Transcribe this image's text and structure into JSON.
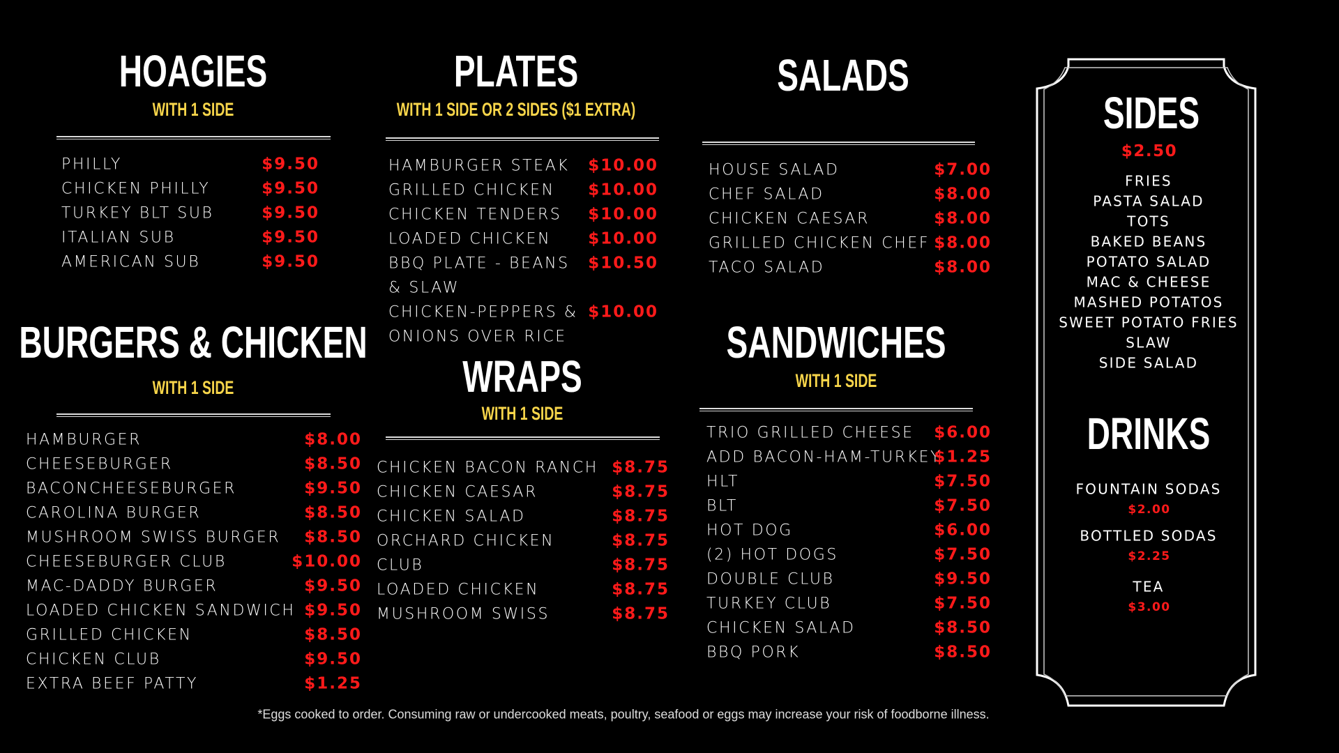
{
  "colors": {
    "background": "#000000",
    "price": "#ff1a1a",
    "subtitle": "#f7d54a",
    "text": "#ffffff"
  },
  "hoagies": {
    "title": "HOAGIES",
    "subtitle": "WITH 1 SIDE",
    "items": [
      {
        "name": "PHILLY",
        "price": "$9.50"
      },
      {
        "name": "CHICKEN PHILLY",
        "price": "$9.50"
      },
      {
        "name": "TURKEY BLT SUB",
        "price": "$9.50"
      },
      {
        "name": "ITALIAN SUB",
        "price": "$9.50"
      },
      {
        "name": "AMERICAN SUB",
        "price": "$9.50"
      }
    ]
  },
  "burgers": {
    "title": "BURGERS & CHICKEN",
    "subtitle": "WITH 1 SIDE",
    "items": [
      {
        "name": "HAMBURGER",
        "price": "$8.00"
      },
      {
        "name": "CHEESEBURGER",
        "price": "$8.50"
      },
      {
        "name": "BACONCHEESEBURGER",
        "price": "$9.50"
      },
      {
        "name": "CAROLINA BURGER",
        "price": "$8.50"
      },
      {
        "name": "MUSHROOM SWISS BURGER",
        "price": "$8.50"
      },
      {
        "name": "CHEESEBURGER CLUB",
        "price": "$10.00"
      },
      {
        "name": "MAC-DADDY BURGER",
        "price": "$9.50"
      },
      {
        "name": "LOADED CHICKEN SANDWICH",
        "price": "$9.50"
      },
      {
        "name": "GRILLED CHICKEN",
        "price": "$8.50"
      },
      {
        "name": "CHICKEN CLUB",
        "price": "$9.50"
      },
      {
        "name": "EXTRA BEEF PATTY",
        "price": "$1.25"
      }
    ]
  },
  "plates": {
    "title": "PLATES",
    "subtitle": "WITH 1 SIDE OR 2 SIDES ($1 EXTRA)",
    "items": [
      {
        "name": "HAMBURGER STEAK",
        "price": "$10.00"
      },
      {
        "name": "GRILLED CHICKEN",
        "price": "$10.00"
      },
      {
        "name": "CHICKEN TENDERS",
        "price": "$10.00"
      },
      {
        "name": "LOADED CHICKEN",
        "price": "$10.00"
      },
      {
        "name": "BBQ PLATE - BEANS",
        "price": "$10.50"
      },
      {
        "name": "& SLAW",
        "price": ""
      },
      {
        "name": "CHICKEN-PEPPERS &",
        "price": "$10.00"
      },
      {
        "name": "ONIONS OVER RICE",
        "price": ""
      }
    ]
  },
  "wraps": {
    "title": "WRAPS",
    "subtitle": "WITH 1 SIDE",
    "items": [
      {
        "name": "CHICKEN BACON RANCH",
        "price": "$8.75"
      },
      {
        "name": "CHICKEN CAESAR",
        "price": "$8.75"
      },
      {
        "name": "CHICKEN SALAD",
        "price": "$8.75"
      },
      {
        "name": "ORCHARD CHICKEN",
        "price": "$8.75"
      },
      {
        "name": "CLUB",
        "price": "$8.75"
      },
      {
        "name": "LOADED CHICKEN",
        "price": "$8.75"
      },
      {
        "name": "MUSHROOM SWISS",
        "price": "$8.75"
      }
    ]
  },
  "salads": {
    "title": "SALADS",
    "items": [
      {
        "name": "HOUSE SALAD",
        "price": "$7.00"
      },
      {
        "name": "CHEF SALAD",
        "price": "$8.00"
      },
      {
        "name": "CHICKEN CAESAR",
        "price": "$8.00"
      },
      {
        "name": "GRILLED CHICKEN CHEF",
        "price": "$8.00"
      },
      {
        "name": "TACO SALAD",
        "price": "$8.00"
      }
    ]
  },
  "sandwiches": {
    "title": "SANDWICHES",
    "subtitle": "WITH 1 SIDE",
    "items": [
      {
        "name": "TRIO GRILLED CHEESE",
        "price": "$6.00"
      },
      {
        "name": "ADD BACON-HAM-TURKEY",
        "price": "$1.25"
      },
      {
        "name": "HLT",
        "price": "$7.50"
      },
      {
        "name": "BLT",
        "price": "$7.50"
      },
      {
        "name": "HOT DOG",
        "price": "$6.00"
      },
      {
        "name": "(2) HOT DOGS",
        "price": "$7.50"
      },
      {
        "name": "DOUBLE CLUB",
        "price": "$9.50"
      },
      {
        "name": "TURKEY CLUB",
        "price": "$7.50"
      },
      {
        "name": "CHICKEN SALAD",
        "price": "$8.50"
      },
      {
        "name": "BBQ PORK",
        "price": "$8.50"
      }
    ]
  },
  "sides": {
    "title": "SIDES",
    "price": "$2.50",
    "items": [
      "FRIES",
      "PASTA SALAD",
      "TOTS",
      "BAKED BEANS",
      "POTATO SALAD",
      "MAC & CHEESE",
      "MASHED POTATOS",
      "SWEET POTATO FRIES",
      "SLAW",
      "SIDE SALAD"
    ]
  },
  "drinks": {
    "title": "DRINKS",
    "items": [
      {
        "name": "FOUNTAIN SODAS",
        "price": "$2.00"
      },
      {
        "name": "BOTTLED SODAS",
        "price": "$2.25"
      },
      {
        "name": "TEA",
        "price": "$3.00"
      }
    ]
  },
  "footnote": "*Eggs cooked to order. Consuming raw or undercooked meats, poultry, seafood or eggs may increase your risk of foodborne illness."
}
